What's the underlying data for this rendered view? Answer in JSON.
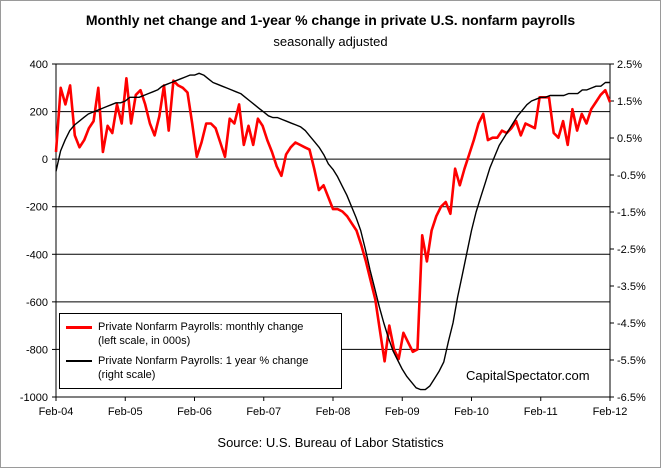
{
  "chart_data": {
    "type": "line",
    "title": "Monthly net change and 1-year %  change in private U.S. nonfarm payrolls",
    "subtitle": "seasonally adjusted",
    "source": "Source: U.S. Bureau of Labor Statistics",
    "watermark": "CapitalSpectator.com",
    "x_tick_labels": [
      "Feb-04",
      "Feb-05",
      "Feb-06",
      "Feb-07",
      "Feb-08",
      "Feb-09",
      "Feb-10",
      "Feb-11",
      "Feb-12"
    ],
    "x_range": [
      "2004-02",
      "2012-02"
    ],
    "left_axis": {
      "range": [
        -1000,
        400
      ],
      "tick_labels": [
        "400",
        "200",
        "0",
        "-200",
        "-400",
        "-600",
        "-800",
        "-1000"
      ],
      "tick_values": [
        400,
        200,
        0,
        -200,
        -400,
        -600,
        -800,
        -1000
      ]
    },
    "right_axis": {
      "range": [
        -6.5,
        2.5
      ],
      "tick_labels": [
        "2.5%",
        "1.5%",
        "0.5%",
        "-0.5%",
        "-1.5%",
        "-2.5%",
        "-3.5%",
        "-4.5%",
        "-5.5%",
        "-6.5%"
      ],
      "tick_values": [
        2.5,
        1.5,
        0.5,
        -0.5,
        -1.5,
        -2.5,
        -3.5,
        -4.5,
        -5.5,
        -6.5
      ]
    },
    "grid": "horizontal",
    "legend_position": "bottom-left",
    "series": [
      {
        "name": "Private Nonfarm Payrolls: monthly change",
        "legend_note": "(left scale, in 000s)",
        "axis": "left",
        "color": "#ff0000",
        "values": [
          30,
          300,
          230,
          310,
          100,
          50,
          80,
          130,
          160,
          300,
          30,
          140,
          110,
          230,
          150,
          340,
          150,
          270,
          290,
          230,
          150,
          100,
          180,
          310,
          120,
          330,
          310,
          300,
          280,
          150,
          10,
          70,
          150,
          150,
          130,
          70,
          10,
          170,
          150,
          230,
          60,
          140,
          60,
          170,
          140,
          80,
          30,
          -30,
          -70,
          20,
          50,
          70,
          60,
          50,
          40,
          -40,
          -130,
          -110,
          -160,
          -210,
          -210,
          -220,
          -240,
          -270,
          -300,
          -360,
          -430,
          -510,
          -590,
          -720,
          -850,
          -700,
          -800,
          -840,
          -730,
          -770,
          -810,
          -800,
          -320,
          -430,
          -300,
          -240,
          -200,
          -180,
          -230,
          -40,
          -110,
          -40,
          20,
          80,
          150,
          190,
          80,
          90,
          90,
          120,
          110,
          130,
          160,
          100,
          150,
          140,
          130,
          260,
          260,
          260,
          110,
          90,
          160,
          60,
          210,
          120,
          190,
          150,
          210,
          240,
          270,
          290,
          240
        ]
      },
      {
        "name": "Private Nonfarm Payrolls:  1 year % change",
        "legend_note": "(right scale)",
        "axis": "right",
        "color": "#000000",
        "values": [
          -0.4,
          0.15,
          0.45,
          0.7,
          0.85,
          0.95,
          1.05,
          1.15,
          1.2,
          1.25,
          1.3,
          1.35,
          1.4,
          1.45,
          1.45,
          1.5,
          1.6,
          1.6,
          1.6,
          1.65,
          1.7,
          1.75,
          1.8,
          1.9,
          1.95,
          2.0,
          2.05,
          2.1,
          2.15,
          2.2,
          2.2,
          2.25,
          2.2,
          2.1,
          2.0,
          1.95,
          1.9,
          1.85,
          1.8,
          1.75,
          1.7,
          1.6,
          1.5,
          1.4,
          1.3,
          1.2,
          1.1,
          1.05,
          1.05,
          1.0,
          0.95,
          0.9,
          0.85,
          0.8,
          0.7,
          0.55,
          0.4,
          0.25,
          0.05,
          -0.2,
          -0.35,
          -0.55,
          -0.8,
          -1.05,
          -1.35,
          -1.65,
          -2.0,
          -2.5,
          -3.05,
          -3.55,
          -4.05,
          -4.5,
          -4.9,
          -5.25,
          -5.5,
          -5.75,
          -5.95,
          -6.1,
          -6.25,
          -6.3,
          -6.3,
          -6.2,
          -6.0,
          -5.8,
          -5.55,
          -5.0,
          -4.5,
          -3.8,
          -3.2,
          -2.6,
          -2.0,
          -1.5,
          -1.1,
          -0.7,
          -0.3,
          0.0,
          0.3,
          0.5,
          0.7,
          0.9,
          1.1,
          1.25,
          1.4,
          1.5,
          1.55,
          1.6,
          1.6,
          1.65,
          1.65,
          1.65,
          1.65,
          1.7,
          1.7,
          1.7,
          1.8,
          1.8,
          1.85,
          1.9,
          1.9,
          2.0,
          2.0
        ]
      }
    ]
  }
}
